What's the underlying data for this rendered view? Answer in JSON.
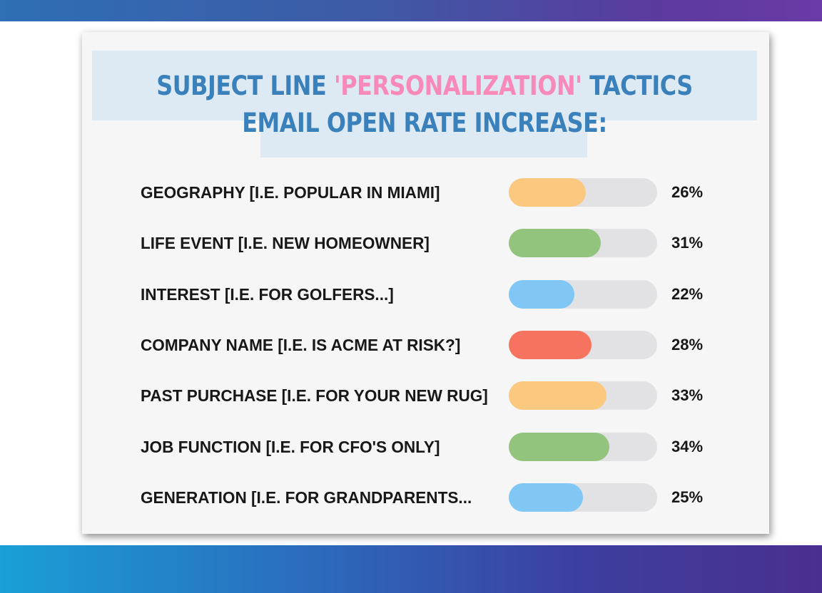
{
  "title": {
    "part1": "SUBJECT LINE ",
    "highlight": "'PERSONALIZATION'",
    "part2": " TACTICS EMAIL OPEN RATE INCREASE:"
  },
  "colors": {
    "title": "#3a80bb",
    "highlight": "#f78ab9",
    "track": "#e2e2e4"
  },
  "chart_data": {
    "type": "bar",
    "orientation": "horizontal",
    "title": "SUBJECT LINE 'PERSONALIZATION' TACTICS EMAIL OPEN RATE INCREASE:",
    "value_max": 50,
    "categories": [
      "GEOGRAPHY [I.E. POPULAR IN MIAMI]",
      "LIFE EVENT [I.E. NEW HOMEOWNER]",
      "INTEREST [I.E. FOR GOLFERS...]",
      "COMPANY NAME [I.E. IS ACME AT RISK?]",
      "PAST PURCHASE [I.E. FOR YOUR NEW RUG]",
      "JOB FUNCTION [I.E. FOR CFO'S ONLY]",
      "GENERATION [I.E. FOR GRANDPARENTS..."
    ],
    "values": [
      26,
      31,
      22,
      28,
      33,
      34,
      25
    ],
    "value_labels": [
      "26%",
      "31%",
      "22%",
      "28%",
      "33%",
      "34%",
      "25%"
    ],
    "bar_colors": [
      "#fbc880",
      "#93c47d",
      "#80c7f5",
      "#f5735f",
      "#fbc880",
      "#93c47d",
      "#80c7f5"
    ]
  }
}
